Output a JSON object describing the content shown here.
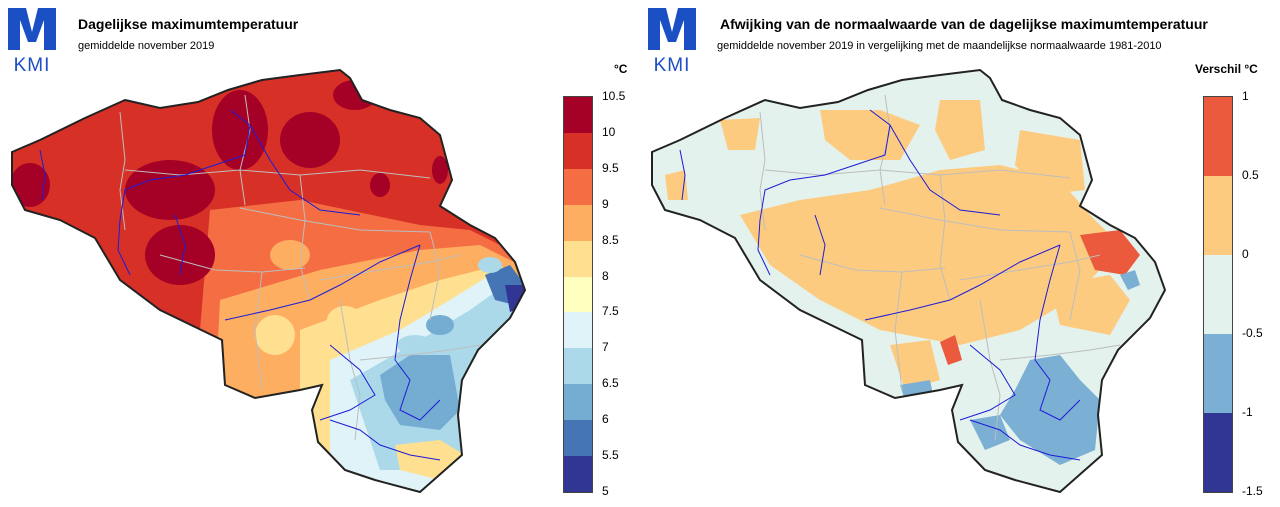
{
  "logo": {
    "text": "KMI",
    "color": "#1b4fc4"
  },
  "left": {
    "title": "Dagelijkse maximumtemperatuur",
    "subtitle": "gemiddelde november 2019",
    "unit": "°C",
    "legend": {
      "ticks": [
        "10.5",
        "10",
        "9.5",
        "9",
        "8.5",
        "8",
        "7.5",
        "7",
        "6.5",
        "6",
        "5.5",
        "5"
      ],
      "colors": [
        "#a50026",
        "#d73027",
        "#f46d43",
        "#fdae61",
        "#fee090",
        "#ffffbf",
        "#e0f3f8",
        "#abd9e9",
        "#74add1",
        "#4575b4",
        "#313695"
      ]
    }
  },
  "right": {
    "title": "Afwijking van de normaalwaarde van de dagelijkse maximumtemperatuur",
    "subtitle": "gemiddelde november 2019 in vergelijking met de maandelijkse normaalwaarde 1981-2010",
    "unit": "Verschil °C",
    "legend": {
      "ticks": [
        "1",
        "0.5",
        "0",
        "-0.5",
        "-1",
        "-1.5"
      ],
      "colors": [
        "#eb5a3c",
        "#fdcb80",
        "#e3f2ec",
        "#7bafd4",
        "#313695"
      ]
    }
  }
}
